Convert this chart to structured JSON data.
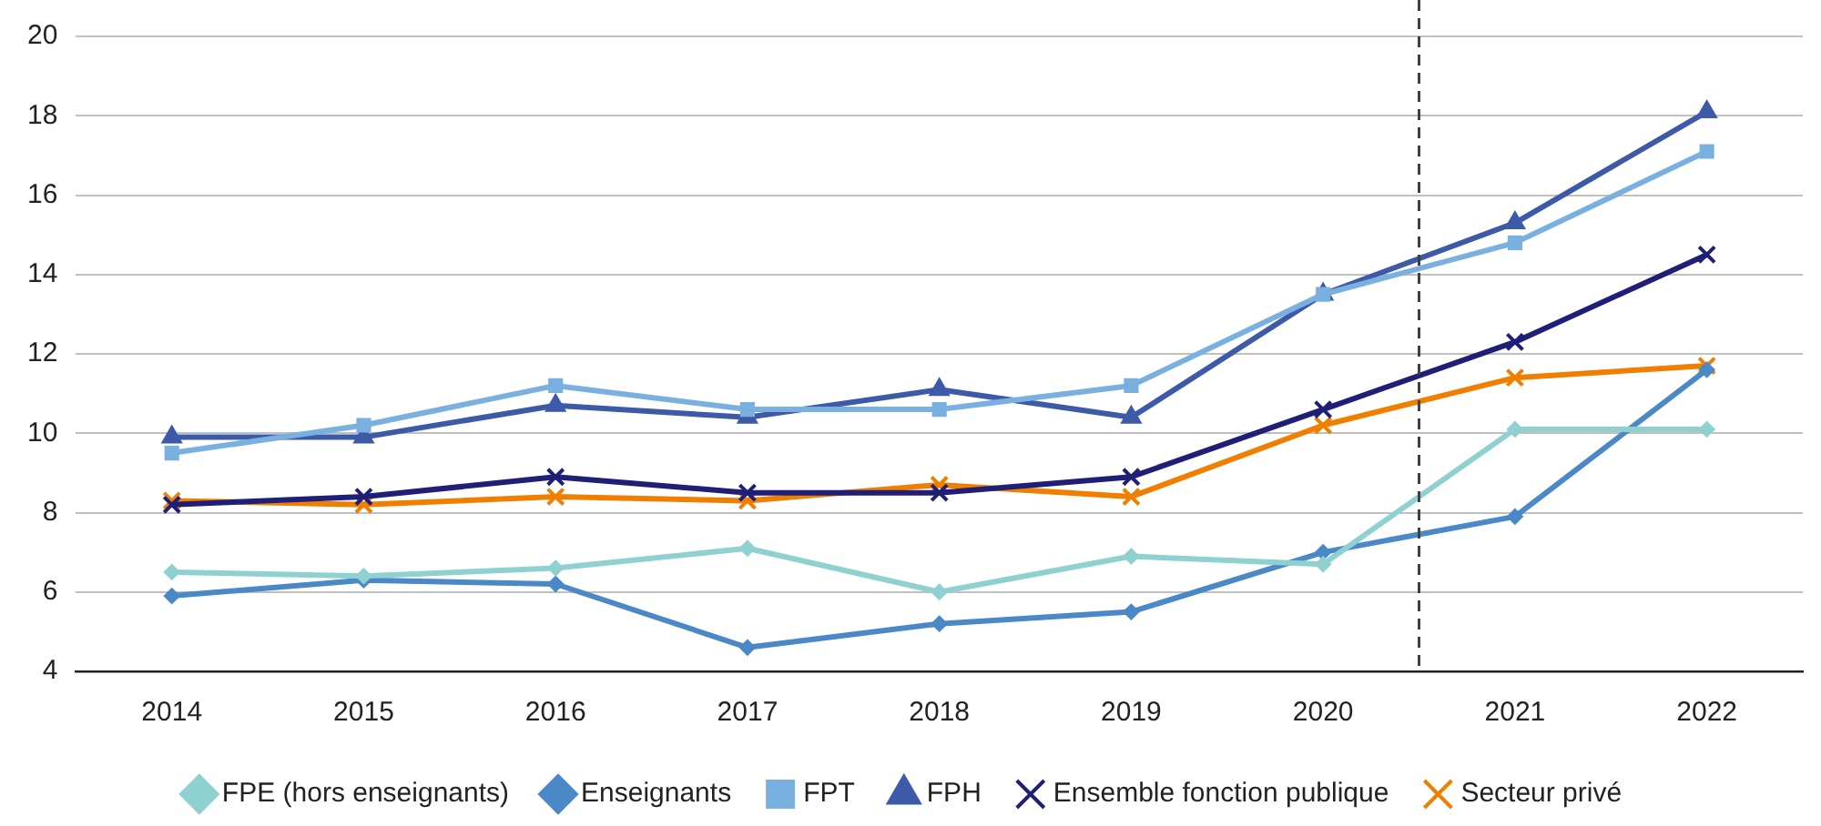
{
  "chart_data": {
    "type": "line",
    "x": [
      2014,
      2015,
      2016,
      2017,
      2018,
      2019,
      2020,
      2021,
      2022
    ],
    "xlim": [
      2013.5,
      2022.5
    ],
    "xticks": [
      2014,
      2015,
      2016,
      2017,
      2018,
      2019,
      2020,
      2021,
      2022
    ],
    "ylim": [
      4,
      20
    ],
    "yticks": [
      4,
      6,
      8,
      10,
      12,
      14,
      16,
      18,
      20
    ],
    "grid": "y",
    "legend": "bottom",
    "line_style": "solid",
    "ref_lines": [
      {
        "axis": "x",
        "value": 2020.5,
        "color": "#404040",
        "line_style": "dashed"
      }
    ],
    "series": [
      {
        "name": "FPE (hors enseignants)",
        "color": "#8fd0d0",
        "marker": "diamond",
        "values": [
          6.5,
          6.4,
          6.6,
          7.1,
          6.0,
          6.9,
          6.7,
          10.1,
          10.1
        ]
      },
      {
        "name": "Enseignants",
        "color": "#4a88c8",
        "marker": "diamond",
        "values": [
          5.9,
          6.3,
          6.2,
          4.6,
          5.2,
          5.5,
          7.0,
          7.9,
          11.6
        ]
      },
      {
        "name": "FPT",
        "color": "#7ab0e0",
        "marker": "square",
        "values": [
          9.5,
          10.2,
          11.2,
          10.6,
          10.6,
          11.2,
          13.5,
          14.8,
          17.1
        ]
      },
      {
        "name": "FPH",
        "color": "#3d5aa8",
        "marker": "triangle",
        "values": [
          9.9,
          9.9,
          10.7,
          10.4,
          11.1,
          10.4,
          13.5,
          15.3,
          18.1
        ]
      },
      {
        "name": "Ensemble fonction publique",
        "color": "#1f1f78",
        "marker": "cross",
        "values": [
          8.2,
          8.4,
          8.9,
          8.5,
          8.5,
          8.9,
          10.6,
          12.3,
          14.5
        ]
      },
      {
        "name": "Secteur privé",
        "color": "#f07f00",
        "marker": "cross",
        "values": [
          8.3,
          8.2,
          8.4,
          8.3,
          8.7,
          8.4,
          10.2,
          11.4,
          11.7
        ]
      }
    ]
  }
}
